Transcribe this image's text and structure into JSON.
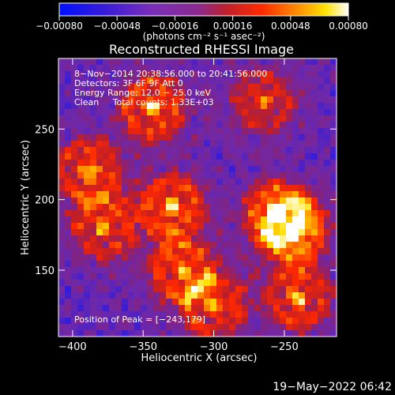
{
  "chart_data": {
    "type": "heatmap",
    "title": "Reconstructed RHESSI Image",
    "xlabel": "Heliocentric X (arcsec)",
    "ylabel": "Heliocentric Y (arcsec)",
    "xlim": [
      -410,
      -213
    ],
    "ylim": [
      103,
      300
    ],
    "xticks": [
      -400,
      -350,
      -300,
      -250
    ],
    "xtick_labels": [
      "−400",
      "−350",
      "−300",
      "−250"
    ],
    "yticks": [
      150,
      200,
      250
    ],
    "ytick_labels": [
      "150",
      "200",
      "250"
    ],
    "colorbar": {
      "range": [
        -0.0008,
        0.0008
      ],
      "ticks": [
        -0.0008,
        -0.00048,
        -0.00016,
        0.00016,
        0.00048,
        0.0008
      ],
      "tick_labels": [
        "−0.00080",
        "−0.00048",
        "−0.00016",
        "0.00016",
        "0.00048",
        "0.00080"
      ],
      "units_label": "(photons cm⁻² s⁻¹ asec⁻²)",
      "colormap": "rainbow-blue-purple-red-yellow-white"
    },
    "annotations": [
      "8−Nov−2014 20:38:56.000 to 20:41:56.000",
      "Detectors: 3F 6F 9F Att 0",
      "Energy Range: 12.0 − 25.0 keV",
      "Clean     Total counts: 1.33E+03"
    ],
    "peak_annotation": "Position of Peak = [−243,179]",
    "peak_position": [
      -243,
      179
    ],
    "bright_features": [
      {
        "x": -343,
        "y": 265,
        "level": 0.95
      },
      {
        "x": -388,
        "y": 220,
        "level": 0.85
      },
      {
        "x": -378,
        "y": 180,
        "level": 0.8
      },
      {
        "x": -330,
        "y": 195,
        "level": 0.9
      },
      {
        "x": -322,
        "y": 150,
        "level": 0.85
      },
      {
        "x": -300,
        "y": 125,
        "level": 0.8
      },
      {
        "x": -255,
        "y": 190,
        "level": 0.9
      },
      {
        "x": -243,
        "y": 179,
        "level": 1.0
      },
      {
        "x": -240,
        "y": 130,
        "level": 0.85
      },
      {
        "x": -265,
        "y": 270,
        "level": 0.7
      }
    ]
  },
  "footer": {
    "timestamp": "19−May−2022 06:42"
  }
}
